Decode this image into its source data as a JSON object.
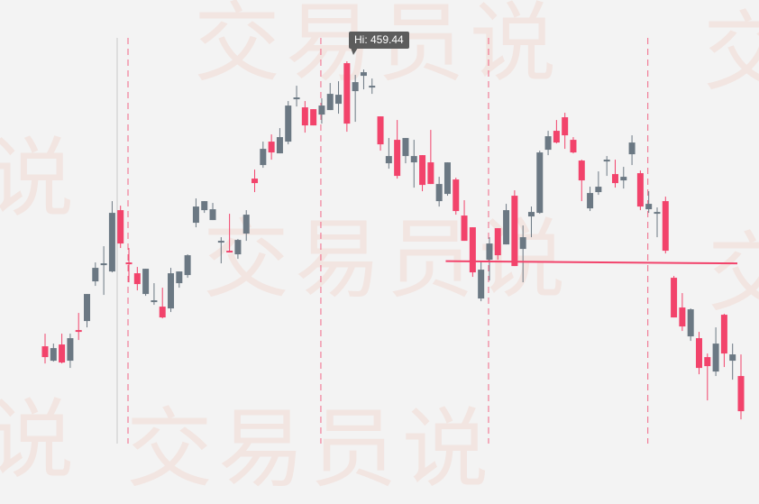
{
  "watermark": {
    "text": "交易员说",
    "color": "#f08c6e"
  },
  "chart_data": {
    "type": "candlestick",
    "title": "",
    "xlabel": "",
    "ylabel": "",
    "grid": false,
    "colors": {
      "up": "#f2436b",
      "down": "#6b7883",
      "level_line": "#f2436b",
      "marker_line": "#f2436b",
      "cursor_line": "#c8c8c8"
    },
    "annotation": {
      "label": "Hi: 459.44",
      "value": 459.44,
      "candle_index": 36
    },
    "candles_ohlc": [
      [
        295.4,
        308.4,
        291.9,
        301.4
      ],
      [
        300.4,
        302.9,
        292.9,
        293.4
      ],
      [
        292.4,
        308.4,
        291.9,
        302.4
      ],
      [
        305.9,
        308.4,
        289.4,
        293.4
      ],
      [
        309.4,
        319.9,
        304.9,
        310.4
      ],
      [
        330.4,
        330.4,
        311.9,
        315.4
      ],
      [
        344.9,
        347.9,
        334.9,
        337.4
      ],
      [
        347.4,
        356.9,
        329.9,
        346.9
      ],
      [
        375.4,
        381.9,
        342.4,
        342.9
      ],
      [
        358.4,
        379.4,
        355.9,
        376.9
      ],
      [
        347.4,
        355.9,
        336.9,
        347.9
      ],
      [
        335.9,
        345.4,
        332.4,
        341.9
      ],
      [
        344.4,
        344.4,
        329.4,
        330.4
      ],
      [
        326.9,
        336.4,
        324.4,
        325.9
      ],
      [
        317.4,
        333.9,
        316.9,
        323.4
      ],
      [
        341.9,
        344.9,
        320.4,
        322.4
      ],
      [
        342.9,
        342.9,
        333.9,
        336.4
      ],
      [
        351.9,
        352.4,
        339.4,
        340.9
      ],
      [
        378.9,
        383.4,
        367.4,
        369.9
      ],
      [
        381.9,
        381.9,
        375.4,
        376.9
      ],
      [
        377.4,
        380.9,
        371.4,
        371.4
      ],
      [
        359.9,
        361.9,
        347.4,
        359.4
      ],
      [
        353.9,
        374.9,
        353.4,
        354.4
      ],
      [
        360.4,
        360.9,
        349.9,
        352.4
      ],
      [
        374.4,
        376.9,
        359.9,
        363.9
      ],
      [
        391.9,
        399.4,
        386.9,
        394.4
      ],
      [
        410.9,
        414.9,
        400.4,
        401.9
      ],
      [
        408.9,
        418.9,
        404.9,
        414.9
      ],
      [
        417.4,
        422.4,
        408.4,
        408.4
      ],
      [
        434.9,
        437.4,
        413.4,
        414.9
      ],
      [
        439.4,
        445.9,
        434.4,
        438.9
      ],
      [
        423.9,
        437.4,
        419.9,
        433.9
      ],
      [
        423.9,
        432.9,
        423.9,
        432.9
      ],
      [
        434.9,
        438.9,
        424.9,
        429.9
      ],
      [
        441.4,
        447.4,
        432.4,
        432.4
      ],
      [
        440.9,
        448.4,
        430.4,
        435.9
      ],
      [
        424.9,
        459.44,
        420.4,
        458.4
      ],
      [
        447.9,
        451.9,
        425.9,
        442.9
      ],
      [
        453.4,
        454.9,
        443.9,
        451.4
      ],
      [
        445.9,
        449.9,
        441.4,
        445.4
      ],
      [
        413.4,
        428.9,
        409.9,
        428.9
      ],
      [
        406.9,
        416.9,
        399.9,
        402.9
      ],
      [
        395.9,
        426.9,
        394.4,
        415.9
      ],
      [
        416.9,
        416.9,
        402.9,
        406.9
      ],
      [
        406.9,
        415.9,
        389.4,
        403.4
      ],
      [
        390.9,
        407.4,
        387.4,
        407.4
      ],
      [
        391.4,
        421.4,
        391.4,
        403.4
      ],
      [
        391.4,
        395.4,
        378.9,
        381.9
      ],
      [
        403.4,
        403.4,
        384.9,
        385.9
      ],
      [
        376.4,
        394.9,
        374.4,
        393.9
      ],
      [
        359.9,
        382.4,
        359.9,
        373.9
      ],
      [
        342.4,
        367.4,
        339.9,
        367.4
      ],
      [
        343.9,
        348.4,
        326.4,
        327.9
      ],
      [
        358.4,
        361.9,
        337.9,
        349.4
      ],
      [
        351.9,
        366.9,
        349.4,
        366.9
      ],
      [
        376.9,
        380.4,
        357.9,
        357.9
      ],
      [
        345.9,
        387.9,
        345.9,
        384.9
      ],
      [
        361.9,
        368.4,
        336.9,
        355.4
      ],
      [
        375.9,
        378.9,
        361.9,
        373.4
      ],
      [
        408.9,
        409.9,
        374.9,
        375.4
      ],
      [
        417.9,
        420.9,
        407.4,
        410.4
      ],
      [
        414.4,
        426.9,
        413.9,
        420.9
      ],
      [
        418.4,
        430.9,
        410.9,
        428.4
      ],
      [
        408.9,
        417.4,
        408.4,
        415.9
      ],
      [
        393.4,
        404.9,
        381.9,
        404.4
      ],
      [
        386.4,
        389.9,
        376.4,
        377.9
      ],
      [
        389.9,
        398.4,
        385.4,
        386.9
      ],
      [
        404.9,
        406.9,
        395.9,
        403.9
      ],
      [
        391.9,
        404.9,
        389.4,
        396.9
      ],
      [
        395.4,
        400.9,
        388.9,
        393.4
      ],
      [
        414.4,
        418.4,
        401.9,
        407.9
      ],
      [
        378.9,
        398.9,
        376.9,
        397.4
      ],
      [
        380.4,
        387.4,
        375.4,
        377.4
      ],
      [
        375.9,
        378.4,
        361.9,
        375.4
      ],
      [
        354.4,
        384.4,
        352.9,
        381.9
      ],
      [
        317.4,
        340.4,
        317.4,
        339.4
      ],
      [
        312.4,
        330.9,
        309.9,
        322.9
      ],
      [
        321.9,
        322.4,
        304.4,
        306.9
      ],
      [
        289.4,
        309.4,
        285.9,
        305.9
      ],
      [
        290.4,
        297.4,
        271.4,
        295.4
      ],
      [
        302.9,
        311.9,
        284.9,
        287.4
      ],
      [
        297.4,
        319.4,
        289.9,
        318.9
      ],
      [
        296.9,
        302.9,
        282.9,
        293.4
      ],
      [
        265.4,
        296.9,
        260.9,
        284.9
      ]
    ],
    "level_line": {
      "value": 348.6,
      "from_candle": 48,
      "to_candle": 83
    },
    "marker_lines_at_candles": [
      10,
      33,
      53,
      72
    ],
    "cursor_line_at_candle": 8.6
  }
}
